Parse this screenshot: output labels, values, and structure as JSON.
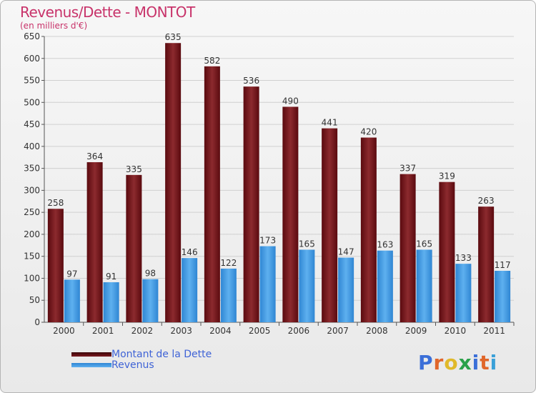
{
  "title": "Revenus/Dette - MONTOT",
  "subtitle": "(en milliers d'€)",
  "legend": [
    {
      "label": "Montant de la Dette",
      "color": "#6b0f14"
    },
    {
      "label": "Revenus",
      "color": "#3e98e0"
    }
  ],
  "logo": {
    "text": "Proxiti"
  },
  "chart_data": {
    "type": "bar",
    "title": "Revenus/Dette - MONTOT",
    "ylabel": "(en milliers d'€)",
    "xlabel": "",
    "categories": [
      "2000",
      "2001",
      "2002",
      "2003",
      "2004",
      "2005",
      "2006",
      "2007",
      "2008",
      "2009",
      "2010",
      "2011"
    ],
    "series": [
      {
        "name": "Montant de la Dette",
        "color": "#7a1a20",
        "values": [
          258,
          364,
          335,
          635,
          582,
          536,
          490,
          441,
          420,
          337,
          319,
          263
        ]
      },
      {
        "name": "Revenus",
        "color": "#3e98e0",
        "values": [
          97,
          91,
          98,
          146,
          122,
          173,
          165,
          147,
          163,
          165,
          133,
          117
        ]
      }
    ],
    "ylim": [
      0,
      650
    ],
    "yticks": [
      0,
      50,
      100,
      150,
      200,
      250,
      300,
      350,
      400,
      450,
      500,
      550,
      600,
      650
    ],
    "grid": true,
    "legend_position": "bottom-left"
  }
}
